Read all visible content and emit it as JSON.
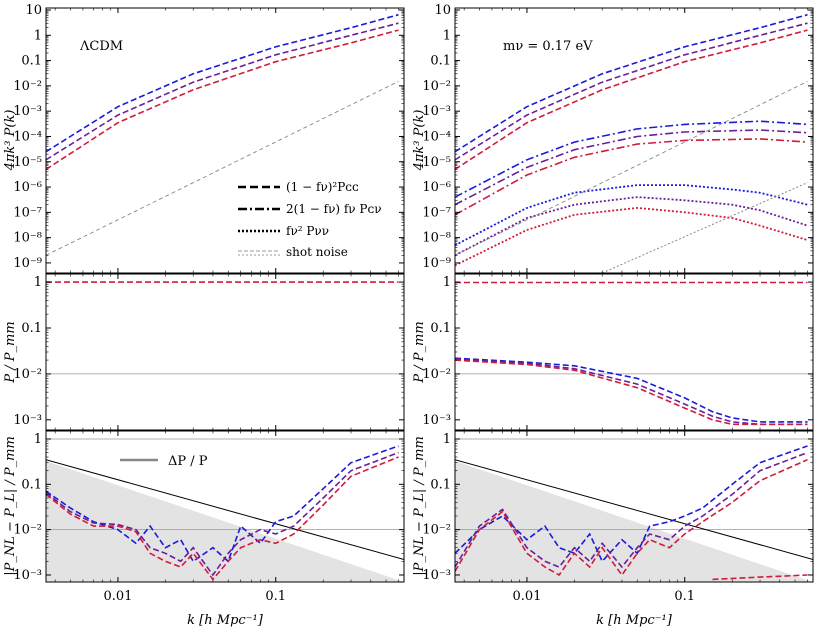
{
  "figure": {
    "xlabel": "k [h Mpc⁻¹]",
    "x_tick_labels": [
      "0.01",
      "0.1"
    ]
  },
  "chart_data": [
    {
      "type": "line",
      "panel": "left-top",
      "title": "ΛCDM",
      "ylabel": "4πk³ P(k)",
      "x_scale": "log",
      "y_scale": "log",
      "xlim": [
        0.0035,
        0.65
      ],
      "ylim": [
        4e-10,
        12
      ],
      "y_tick_labels": [
        "10⁻⁹",
        "10⁻⁸",
        "10⁻⁷",
        "10⁻⁶",
        "10⁻⁵",
        "10⁻⁴",
        "10⁻³",
        "10⁻²",
        "0.1",
        "1",
        "10"
      ],
      "legend": {
        "position": "bottom-right",
        "entries": [
          {
            "label": "(1 − fν)²Pᴄᴄ",
            "style": "dashed"
          },
          {
            "label": "2(1 − fν) fν Pᴄν",
            "style": "dashdot"
          },
          {
            "label": "fν² Pνν",
            "style": "dotted"
          },
          {
            "label": "shot noise",
            "style": "gray-double-dashed"
          }
        ]
      },
      "series": [
        {
          "name": "cc z0 (blue)",
          "color": "#1a1adc",
          "style": "dashed",
          "x": [
            0.0035,
            0.01,
            0.03,
            0.1,
            0.3,
            0.6
          ],
          "y": [
            2.5e-05,
            0.0015,
            0.03,
            0.35,
            2.0,
            6.5
          ]
        },
        {
          "name": "cc z1 (purple)",
          "color": "#6a1f9a",
          "style": "dashed",
          "x": [
            0.0035,
            0.01,
            0.03,
            0.1,
            0.3,
            0.6
          ],
          "y": [
            1.2e-05,
            0.0007,
            0.014,
            0.17,
            1.0,
            3.0
          ]
        },
        {
          "name": "cc z2 (red)",
          "color": "#d01c3c",
          "style": "dashed",
          "x": [
            0.0035,
            0.01,
            0.03,
            0.1,
            0.3,
            0.6
          ],
          "y": [
            5e-06,
            0.00035,
            0.007,
            0.09,
            0.5,
            1.6
          ]
        },
        {
          "name": "shot noise",
          "color": "#888888",
          "style": "thin-dashed",
          "x": [
            0.0035,
            0.6
          ],
          "y": [
            2e-09,
            0.015
          ]
        }
      ]
    },
    {
      "type": "line",
      "panel": "right-top",
      "title": "mν = 0.17 eV",
      "ylabel": "4πk³ P(k)",
      "x_scale": "log",
      "y_scale": "log",
      "xlim": [
        0.0035,
        0.65
      ],
      "ylim": [
        4e-10,
        12
      ],
      "y_tick_labels": [
        "10⁻⁹",
        "10⁻⁸",
        "10⁻⁷",
        "10⁻⁶",
        "10⁻⁵",
        "10⁻⁴",
        "10⁻³",
        "10⁻²",
        "0.1",
        "1",
        "10"
      ],
      "series": [
        {
          "name": "cc blue",
          "color": "#1a1adc",
          "style": "dashed",
          "x": [
            0.0035,
            0.01,
            0.03,
            0.1,
            0.3,
            0.6
          ],
          "y": [
            2.5e-05,
            0.0015,
            0.03,
            0.35,
            2.0,
            6.5
          ]
        },
        {
          "name": "cc purple",
          "color": "#6a1f9a",
          "style": "dashed",
          "x": [
            0.0035,
            0.01,
            0.03,
            0.1,
            0.3,
            0.6
          ],
          "y": [
            1.2e-05,
            0.0007,
            0.014,
            0.17,
            1.0,
            3.0
          ]
        },
        {
          "name": "cc red",
          "color": "#d01c3c",
          "style": "dashed",
          "x": [
            0.0035,
            0.01,
            0.03,
            0.1,
            0.3,
            0.6
          ],
          "y": [
            5e-06,
            0.00035,
            0.007,
            0.09,
            0.5,
            1.6
          ]
        },
        {
          "name": "cv blue",
          "color": "#1a1adc",
          "style": "dashdot",
          "x": [
            0.0035,
            0.01,
            0.02,
            0.05,
            0.1,
            0.3,
            0.6
          ],
          "y": [
            4e-07,
            1.2e-05,
            6e-05,
            0.0002,
            0.0003,
            0.0004,
            0.0003
          ]
        },
        {
          "name": "cv purple",
          "color": "#6a1f9a",
          "style": "dashdot",
          "x": [
            0.0035,
            0.01,
            0.02,
            0.05,
            0.1,
            0.3,
            0.6
          ],
          "y": [
            2e-07,
            6e-06,
            3e-05,
            0.0001,
            0.00015,
            0.00018,
            0.00014
          ]
        },
        {
          "name": "cv red",
          "color": "#d01c3c",
          "style": "dashdot",
          "x": [
            0.0035,
            0.01,
            0.02,
            0.05,
            0.1,
            0.3,
            0.6
          ],
          "y": [
            8e-08,
            3e-06,
            1.5e-05,
            5e-05,
            7e-05,
            8e-05,
            6e-05
          ]
        },
        {
          "name": "nunu blue",
          "color": "#1a1adc",
          "style": "dotted",
          "x": [
            0.0035,
            0.01,
            0.02,
            0.05,
            0.1,
            0.2,
            0.3,
            0.6
          ],
          "y": [
            5e-09,
            1.5e-07,
            6e-07,
            1.2e-06,
            1.2e-06,
            8e-07,
            6e-07,
            2e-07
          ]
        },
        {
          "name": "nunu purple",
          "color": "#6a1f9a",
          "style": "dotted",
          "x": [
            0.0035,
            0.01,
            0.02,
            0.05,
            0.1,
            0.2,
            0.3,
            0.6
          ],
          "y": [
            2e-09,
            6e-08,
            2e-07,
            4e-07,
            3e-07,
            2e-07,
            1.2e-07,
            3e-08
          ]
        },
        {
          "name": "nunu red",
          "color": "#d01c3c",
          "style": "dotted",
          "x": [
            0.0035,
            0.01,
            0.02,
            0.05,
            0.1,
            0.2,
            0.3,
            0.6
          ],
          "y": [
            8e-10,
            2e-08,
            8e-08,
            1.5e-07,
            1e-07,
            6e-08,
            3e-08,
            8e-09
          ]
        },
        {
          "name": "shot noise",
          "color": "#888888",
          "style": "thin-dashed",
          "x": [
            0.0035,
            0.6
          ],
          "y": [
            2e-09,
            0.015
          ]
        },
        {
          "name": "nunu shot noise",
          "color": "#888888",
          "style": "thin-dotted",
          "x": [
            0.03,
            0.6
          ],
          "y": [
            4e-10,
            1.5e-06
          ]
        }
      ]
    },
    {
      "type": "line",
      "panel": "left-middle",
      "ylabel": "P / P_mm",
      "x_scale": "log",
      "y_scale": "log",
      "xlim": [
        0.0035,
        0.65
      ],
      "ylim": [
        0.0006,
        1.5
      ],
      "y_tick_labels": [
        "10⁻³",
        "10⁻²",
        "0.1",
        "1"
      ],
      "series": [
        {
          "name": "ratio (all colors)",
          "color": "#d01c3c",
          "style": "dashed",
          "x": [
            0.0035,
            0.6
          ],
          "y": [
            1.0,
            1.0
          ]
        }
      ]
    },
    {
      "type": "line",
      "panel": "right-middle",
      "ylabel": "P / P_mm",
      "x_scale": "log",
      "y_scale": "log",
      "xlim": [
        0.0035,
        0.65
      ],
      "ylim": [
        0.0006,
        1.5
      ],
      "y_tick_labels": [
        "10⁻³",
        "10⁻²",
        "0.1",
        "1"
      ],
      "series": [
        {
          "name": "cc ratio",
          "color": "#d01c3c",
          "style": "dashed",
          "x": [
            0.0035,
            0.6
          ],
          "y": [
            0.98,
            0.98
          ]
        },
        {
          "name": "blue",
          "color": "#1a1adc",
          "style": "dashed",
          "x": [
            0.0035,
            0.01,
            0.02,
            0.05,
            0.1,
            0.15,
            0.2,
            0.3,
            0.6
          ],
          "y": [
            0.022,
            0.018,
            0.015,
            0.008,
            0.003,
            0.0015,
            0.0011,
            0.0009,
            0.0009
          ]
        },
        {
          "name": "purple",
          "color": "#6a1f9a",
          "style": "dashed",
          "x": [
            0.0035,
            0.01,
            0.02,
            0.05,
            0.1,
            0.15,
            0.2,
            0.3,
            0.6
          ],
          "y": [
            0.021,
            0.017,
            0.013,
            0.006,
            0.0022,
            0.0012,
            0.0009,
            0.0008,
            0.0008
          ]
        },
        {
          "name": "red",
          "color": "#d01c3c",
          "style": "dashed",
          "x": [
            0.0035,
            0.01,
            0.02,
            0.05,
            0.1,
            0.15,
            0.2,
            0.3,
            0.6
          ],
          "y": [
            0.02,
            0.016,
            0.012,
            0.005,
            0.0018,
            0.001,
            0.0008,
            0.0008,
            0.0008
          ]
        }
      ]
    },
    {
      "type": "line",
      "panel": "left-bottom",
      "ylabel": "|P_NL − P_L| / P_mm",
      "annotation": "ΔP / P",
      "x_scale": "log",
      "y_scale": "log",
      "xlim": [
        0.0035,
        0.65
      ],
      "ylim": [
        0.0007,
        1.5
      ],
      "y_tick_labels": [
        "10⁻³",
        "10⁻²",
        "0.1",
        "1"
      ],
      "series": [
        {
          "name": "ΔP/P",
          "color": "#000000",
          "style": "solid",
          "x": [
            0.0035,
            0.65
          ],
          "y": [
            0.35,
            0.0022
          ]
        },
        {
          "name": "blue",
          "color": "#1a1adc",
          "style": "dashed",
          "x": [
            0.0035,
            0.005,
            0.007,
            0.01,
            0.013,
            0.016,
            0.02,
            0.025,
            0.03,
            0.04,
            0.05,
            0.06,
            0.08,
            0.1,
            0.13,
            0.2,
            0.3,
            0.6
          ],
          "y": [
            0.07,
            0.03,
            0.015,
            0.01,
            0.005,
            0.012,
            0.004,
            0.006,
            0.002,
            0.004,
            0.002,
            0.012,
            0.005,
            0.015,
            0.02,
            0.08,
            0.3,
            0.7
          ]
        },
        {
          "name": "purple",
          "color": "#6a1f9a",
          "style": "dashed",
          "x": [
            0.0035,
            0.005,
            0.007,
            0.01,
            0.013,
            0.016,
            0.02,
            0.025,
            0.03,
            0.04,
            0.05,
            0.06,
            0.08,
            0.1,
            0.13,
            0.2,
            0.3,
            0.6
          ],
          "y": [
            0.065,
            0.025,
            0.014,
            0.013,
            0.01,
            0.004,
            0.003,
            0.002,
            0.004,
            0.001,
            0.003,
            0.006,
            0.01,
            0.008,
            0.012,
            0.05,
            0.2,
            0.5
          ]
        },
        {
          "name": "red",
          "color": "#d01c3c",
          "style": "dashed",
          "x": [
            0.0035,
            0.005,
            0.007,
            0.01,
            0.013,
            0.016,
            0.02,
            0.025,
            0.03,
            0.04,
            0.05,
            0.06,
            0.08,
            0.1,
            0.13,
            0.2,
            0.3,
            0.6
          ],
          "y": [
            0.06,
            0.022,
            0.012,
            0.012,
            0.009,
            0.003,
            0.002,
            0.0015,
            0.003,
            0.0008,
            0.002,
            0.004,
            0.006,
            0.005,
            0.008,
            0.035,
            0.15,
            0.4
          ]
        }
      ]
    },
    {
      "type": "line",
      "panel": "right-bottom",
      "ylabel": "|P_NL − P_L| / P_mm",
      "x_scale": "log",
      "y_scale": "log",
      "xlim": [
        0.0035,
        0.65
      ],
      "ylim": [
        0.0007,
        1.5
      ],
      "y_tick_labels": [
        "10⁻³",
        "10⁻²",
        "0.1",
        "1"
      ],
      "series": [
        {
          "name": "ΔP/P",
          "color": "#000000",
          "style": "solid",
          "x": [
            0.0035,
            0.65
          ],
          "y": [
            0.35,
            0.0022
          ]
        },
        {
          "name": "blue",
          "color": "#1a1adc",
          "style": "dashed",
          "x": [
            0.0035,
            0.005,
            0.007,
            0.01,
            0.013,
            0.016,
            0.02,
            0.025,
            0.03,
            0.04,
            0.05,
            0.06,
            0.08,
            0.1,
            0.13,
            0.2,
            0.3,
            0.6
          ],
          "y": [
            0.003,
            0.01,
            0.02,
            0.006,
            0.012,
            0.004,
            0.003,
            0.008,
            0.002,
            0.006,
            0.003,
            0.012,
            0.015,
            0.02,
            0.03,
            0.1,
            0.3,
            0.7
          ]
        },
        {
          "name": "purple",
          "color": "#6a1f9a",
          "style": "dashed",
          "x": [
            0.0035,
            0.005,
            0.007,
            0.01,
            0.013,
            0.016,
            0.02,
            0.025,
            0.03,
            0.04,
            0.05,
            0.06,
            0.08,
            0.1,
            0.13,
            0.2,
            0.3,
            0.6
          ],
          "y": [
            0.0015,
            0.012,
            0.028,
            0.004,
            0.002,
            0.0015,
            0.004,
            0.002,
            0.005,
            0.0015,
            0.004,
            0.008,
            0.006,
            0.012,
            0.02,
            0.06,
            0.2,
            0.5
          ]
        },
        {
          "name": "red",
          "color": "#d01c3c",
          "style": "dashed",
          "x": [
            0.0035,
            0.005,
            0.007,
            0.01,
            0.013,
            0.016,
            0.02,
            0.025,
            0.03,
            0.04,
            0.05,
            0.06,
            0.08,
            0.1,
            0.13,
            0.2,
            0.3,
            0.6
          ],
          "y": [
            0.0012,
            0.01,
            0.025,
            0.003,
            0.0015,
            0.001,
            0.003,
            0.0015,
            0.004,
            0.001,
            0.003,
            0.006,
            0.004,
            0.008,
            0.015,
            0.04,
            0.12,
            0.35
          ]
        },
        {
          "name": "cv tail",
          "color": "#d01c3c",
          "style": "dashed",
          "x": [
            0.15,
            0.3,
            0.6
          ],
          "y": [
            0.0008,
            0.0009,
            0.001
          ]
        }
      ]
    }
  ]
}
